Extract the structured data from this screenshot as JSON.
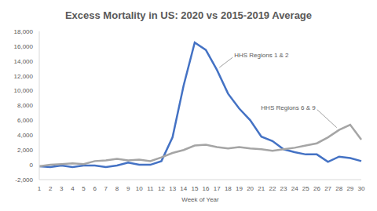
{
  "chart_data": {
    "type": "line",
    "title": "Excess Mortality in US: 2020 vs 2015-2019 Average",
    "x_label": "Week of Year",
    "categories": [
      "1",
      "2",
      "3",
      "4",
      "5",
      "6",
      "7",
      "8",
      "9",
      "10",
      "11",
      "12",
      "13",
      "14",
      "15",
      "16",
      "17",
      "18",
      "19",
      "20",
      "21",
      "22",
      "23",
      "24",
      "25",
      "26",
      "27",
      "28",
      "29",
      "30"
    ],
    "series": [
      {
        "name": "HHS Regions 1 & 2",
        "color": "#4472c4",
        "values": [
          -200,
          -300,
          -100,
          -300,
          -100,
          -100,
          -300,
          -100,
          300,
          0,
          0,
          500,
          3700,
          10700,
          16500,
          15500,
          12800,
          9600,
          7600,
          6000,
          3800,
          3200,
          2100,
          1700,
          1400,
          1400,
          400,
          1100,
          900,
          500
        ]
      },
      {
        "name": "HHS Regions 6 & 9",
        "color": "#a5a5a5",
        "values": [
          -200,
          0,
          100,
          200,
          100,
          500,
          600,
          800,
          600,
          700,
          500,
          1000,
          1600,
          2000,
          2600,
          2700,
          2400,
          2200,
          2400,
          2200,
          2100,
          1900,
          2100,
          2300,
          2600,
          2900,
          3700,
          4700,
          5400,
          3400
        ]
      }
    ],
    "ylim": [
      -2000,
      18000
    ],
    "yticks": [
      {
        "value": -2000,
        "label": "-2,000"
      },
      0,
      {
        "value": 2000,
        "label": "2,000"
      },
      {
        "value": 4000,
        "label": "4,000"
      },
      {
        "value": 6000,
        "label": "6,000"
      },
      {
        "value": 8000,
        "label": "8,000"
      },
      {
        "value": 10000,
        "label": "10,000"
      },
      {
        "value": 12000,
        "label": "12,000"
      },
      {
        "value": 14000,
        "label": "14,000"
      },
      {
        "value": 16000,
        "label": "16,000"
      },
      {
        "value": 18000,
        "label": "18,000"
      }
    ],
    "grid": false
  }
}
